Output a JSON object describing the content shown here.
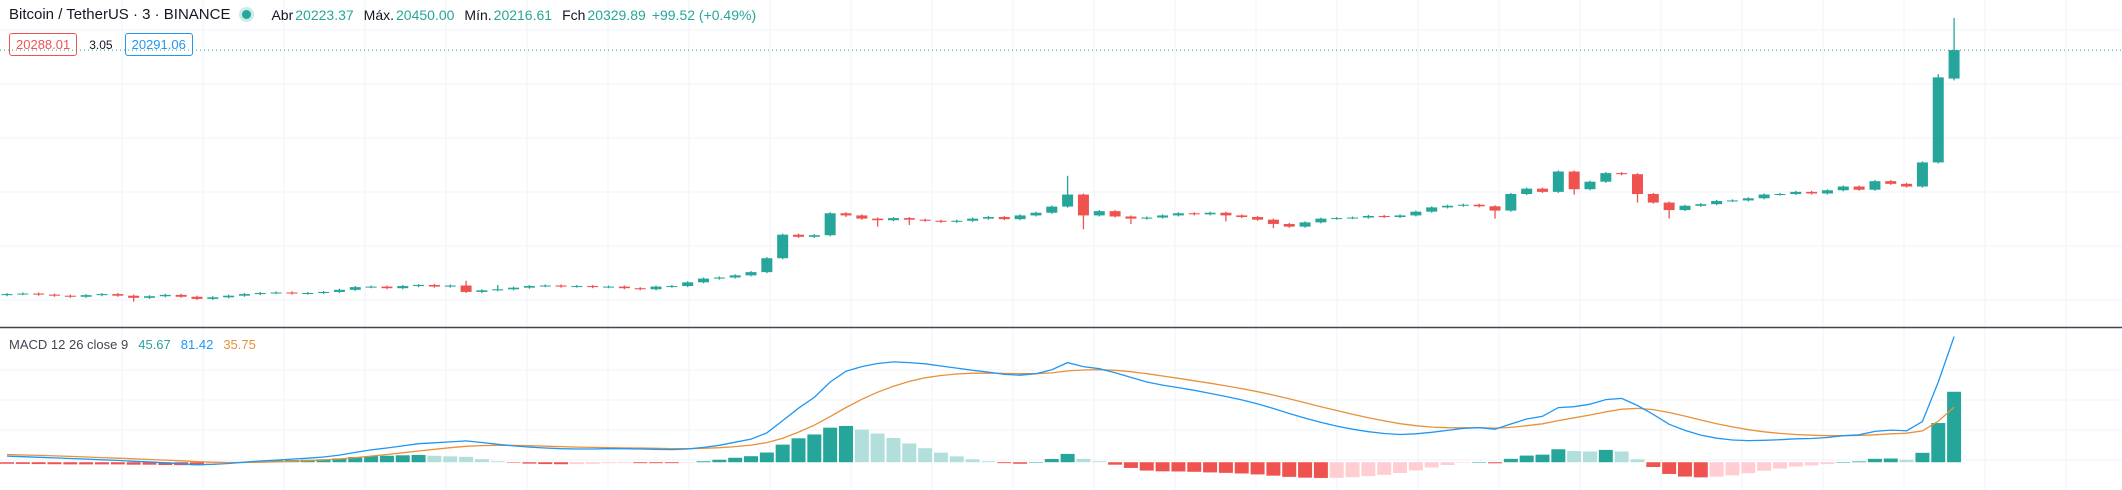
{
  "header": {
    "symbol": "Bitcoin / TetherUS · 3 · BINANCE",
    "open_label": "Abr",
    "high_label": "Máx.",
    "high": "20450.00",
    "low_label": "Mín.",
    "close_label": "Fch",
    "change": "+99.52 (+0.49%)",
    "bid": "20288.01",
    "spread": "3.05",
    "ask": "20291.06"
  },
  "chart_data": [
    {
      "type": "candlestick",
      "up_color": "#26a69a",
      "down_color": "#ef5350",
      "ylim": [
        19295,
        20517
      ],
      "open": [
        19414,
        19418,
        19420,
        19416,
        19412,
        19408,
        19414,
        19418,
        19412,
        19404,
        19410,
        19415,
        19408,
        19400,
        19406,
        19412,
        19418,
        19422,
        19424,
        19420,
        19422,
        19426,
        19434,
        19444,
        19446,
        19440,
        19448,
        19452,
        19446,
        19450,
        19426,
        19432,
        19436,
        19442,
        19448,
        19450,
        19446,
        19448,
        19444,
        19446,
        19440,
        19436,
        19446,
        19448,
        19462,
        19476,
        19480,
        19488,
        19500,
        19552,
        19640,
        19632,
        19638,
        19720,
        19712,
        19700,
        19694,
        19702,
        19696,
        19692,
        19688,
        19692,
        19700,
        19706,
        19698,
        19712,
        19722,
        19745,
        19790,
        19712,
        19728,
        19708,
        19700,
        19704,
        19712,
        19720,
        19716,
        19722,
        19712,
        19706,
        19696,
        19680,
        19670,
        19686,
        19700,
        19702,
        19704,
        19710,
        19706,
        19712,
        19726,
        19742,
        19748,
        19752,
        19746,
        19730,
        19792,
        19812,
        19800,
        19876,
        19810,
        19838,
        19870,
        19866,
        19792,
        19760,
        19732,
        19748,
        19754,
        19766,
        19768,
        19776,
        19790,
        19792,
        19800,
        19794,
        19806,
        19820,
        19808,
        19840,
        19830,
        19820,
        19910,
        20223.37
      ],
      "high": [
        19422,
        19424,
        19424,
        19420,
        19416,
        19418,
        19422,
        19422,
        19416,
        19414,
        19419,
        19419,
        19412,
        19410,
        19416,
        19422,
        19426,
        19428,
        19428,
        19426,
        19430,
        19438,
        19448,
        19450,
        19450,
        19452,
        19456,
        19456,
        19454,
        19468,
        19436,
        19452,
        19446,
        19452,
        19454,
        19454,
        19452,
        19452,
        19450,
        19450,
        19444,
        19450,
        19452,
        19466,
        19480,
        19484,
        19492,
        19504,
        19556,
        19644,
        19644,
        19642,
        19724,
        19724,
        19716,
        19704,
        19706,
        19706,
        19700,
        19696,
        19696,
        19704,
        19710,
        19710,
        19716,
        19726,
        19749,
        19860,
        19794,
        19732,
        19732,
        19712,
        19708,
        19716,
        19724,
        19724,
        19726,
        19726,
        19716,
        19710,
        19700,
        19684,
        19690,
        19704,
        19706,
        19708,
        19714,
        19714,
        19716,
        19730,
        19746,
        19752,
        19756,
        19756,
        19750,
        19796,
        19816,
        19816,
        19880,
        19880,
        19842,
        19874,
        19874,
        19870,
        19796,
        19764,
        19752,
        19758,
        19770,
        19772,
        19780,
        19794,
        19796,
        19804,
        19804,
        19810,
        19824,
        19824,
        19844,
        19844,
        19834,
        19914,
        20240,
        20450
      ],
      "low": [
        19410,
        19414,
        19412,
        19408,
        19404,
        19404,
        19410,
        19408,
        19390,
        19400,
        19406,
        19404,
        19396,
        19396,
        19402,
        19408,
        19414,
        19418,
        19416,
        19416,
        19418,
        19422,
        19430,
        19440,
        19436,
        19436,
        19444,
        19442,
        19442,
        19422,
        19422,
        19428,
        19432,
        19438,
        19444,
        19442,
        19442,
        19440,
        19440,
        19436,
        19432,
        19432,
        19442,
        19444,
        19458,
        19472,
        19476,
        19484,
        19496,
        19548,
        19628,
        19628,
        19634,
        19706,
        19696,
        19670,
        19690,
        19676,
        19688,
        19684,
        19684,
        19688,
        19696,
        19694,
        19694,
        19708,
        19718,
        19741,
        19660,
        19708,
        19704,
        19680,
        19696,
        19700,
        19708,
        19712,
        19712,
        19690,
        19702,
        19692,
        19664,
        19666,
        19666,
        19682,
        19696,
        19698,
        19700,
        19702,
        19702,
        19708,
        19722,
        19738,
        19744,
        19742,
        19700,
        19726,
        19788,
        19796,
        19796,
        19790,
        19806,
        19834,
        19862,
        19760,
        19756,
        19700,
        19728,
        19744,
        19750,
        19762,
        19764,
        19772,
        19786,
        19788,
        19790,
        19790,
        19802,
        19804,
        19804,
        19826,
        19816,
        19816,
        19906,
        20216.61
      ],
      "close": [
        19418,
        19420,
        19416,
        19412,
        19408,
        19414,
        19418,
        19412,
        19404,
        19410,
        19415,
        19408,
        19400,
        19406,
        19412,
        19418,
        19422,
        19424,
        19420,
        19422,
        19426,
        19434,
        19444,
        19446,
        19440,
        19448,
        19452,
        19446,
        19450,
        19426,
        19432,
        19436,
        19442,
        19448,
        19450,
        19446,
        19448,
        19444,
        19446,
        19440,
        19436,
        19446,
        19448,
        19462,
        19476,
        19480,
        19488,
        19500,
        19552,
        19640,
        19632,
        19638,
        19720,
        19712,
        19700,
        19694,
        19702,
        19696,
        19692,
        19688,
        19692,
        19700,
        19706,
        19698,
        19712,
        19722,
        19745,
        19790,
        19712,
        19728,
        19708,
        19700,
        19704,
        19712,
        19720,
        19716,
        19722,
        19712,
        19706,
        19696,
        19680,
        19670,
        19686,
        19700,
        19702,
        19704,
        19710,
        19706,
        19712,
        19726,
        19742,
        19748,
        19752,
        19746,
        19730,
        19792,
        19812,
        19800,
        19876,
        19810,
        19838,
        19870,
        19866,
        19792,
        19760,
        19732,
        19748,
        19754,
        19766,
        19768,
        19776,
        19790,
        19792,
        19800,
        19794,
        19806,
        19820,
        19808,
        19840,
        19830,
        19820,
        19910,
        20228,
        20329.89
      ]
    },
    {
      "type": "macd",
      "title": "MACD 12 26 close 9",
      "ylim": [
        -18,
        87
      ],
      "macd_color": "#2196f3",
      "signal_color": "#e8913a",
      "histogram_colors": {
        "up_rising": "#26a69a",
        "up_falling": "#b2dfdb",
        "down_falling": "#ef5350",
        "down_rising": "#ffcdd2"
      },
      "histogram": [
        -1.0,
        -1.1,
        -1.2,
        -1.3,
        -1.4,
        -1.4,
        -1.4,
        -1.4,
        -1.6,
        -1.6,
        -1.8,
        -1.9,
        -2.0,
        -1.4,
        -0.6,
        0.2,
        0.8,
        1.1,
        1.4,
        1.6,
        1.9,
        2.5,
        3.4,
        4.0,
        4.2,
        4.5,
        4.7,
        4.2,
        3.8,
        3.5,
        2.0,
        0.6,
        -0.3,
        -0.9,
        -1.2,
        -1.3,
        -1.2,
        -1.0,
        -0.6,
        -0.5,
        -0.6,
        -0.6,
        -0.6,
        -0.2,
        0.6,
        1.6,
        2.9,
        3.9,
        6.3,
        11.4,
        15.5,
        18.0,
        22.4,
        23.5,
        21.2,
        18.6,
        15.7,
        12.2,
        9.1,
        6.2,
        3.8,
        1.9,
        0.6,
        -0.6,
        -1.0,
        0.0,
        2.1,
        5.4,
        2.2,
        0.6,
        -1.6,
        -3.7,
        -5.4,
        -5.9,
        -6.0,
        -6.2,
        -6.6,
        -6.9,
        -7.3,
        -7.9,
        -8.7,
        -9.5,
        -10.0,
        -10.2,
        -10.1,
        -9.7,
        -9.0,
        -8.2,
        -7.0,
        -5.3,
        -3.4,
        -1.8,
        -0.3,
        0.1,
        -0.7,
        2.2,
        4.3,
        4.9,
        8.4,
        7.2,
        7.0,
        8.0,
        7.0,
        1.9,
        -3.1,
        -7.6,
        -9.3,
        -9.8,
        -9.4,
        -8.5,
        -7.1,
        -5.5,
        -4.1,
        -2.8,
        -2.1,
        -1.2,
        0.0,
        0.5,
        2.2,
        2.4,
        1.6,
        6.1,
        25.4,
        45.67
      ],
      "macd": [
        4,
        3.6,
        3.2,
        2.8,
        2.4,
        2,
        1.6,
        1.2,
        0.6,
        0.2,
        -0.4,
        -1,
        -1.6,
        -1.4,
        -0.8,
        0,
        0.8,
        1.4,
        2,
        2.6,
        3.4,
        4.6,
        6.4,
        8,
        9.2,
        10.6,
        12,
        12.6,
        13.2,
        13.8,
        12.8,
        11.6,
        10.6,
        9.8,
        9.2,
        8.8,
        8.6,
        8.6,
        8.8,
        8.8,
        8.6,
        8.4,
        8.2,
        8.6,
        9.6,
        11,
        13,
        15,
        19,
        27,
        35,
        42,
        52,
        59,
        62,
        64,
        65,
        64.6,
        63.8,
        62.4,
        61,
        59.6,
        58.4,
        57,
        56.4,
        57.4,
        60,
        64.6,
        62,
        60.6,
        58,
        55,
        52,
        50,
        48.4,
        46.6,
        44.6,
        42.6,
        40.4,
        37.8,
        34.8,
        31.6,
        28.6,
        25.8,
        23.4,
        21.4,
        19.8,
        18.6,
        18,
        18.4,
        19.4,
        20.6,
        22,
        22.4,
        21.4,
        24.8,
        28,
        29.8,
        35.4,
        36,
        37.6,
        40.6,
        41.4,
        36.8,
        31,
        24.6,
        20.6,
        17.6,
        15.6,
        14.4,
        14,
        14.2,
        14.6,
        15.2,
        15.4,
        16,
        17.2,
        17.8,
        20,
        20.8,
        20.4,
        26.4,
        52,
        81.42
      ],
      "signal": [
        5.0,
        4.7,
        4.4,
        4.1,
        3.8,
        3.4,
        3.0,
        2.6,
        2.2,
        1.8,
        1.4,
        0.9,
        0.4,
        0.0,
        -0.2,
        -0.2,
        0.0,
        0.3,
        0.6,
        1.0,
        1.5,
        2.1,
        3.0,
        4.0,
        5.0,
        6.1,
        7.3,
        8.4,
        9.4,
        10.3,
        10.8,
        11.0,
        10.9,
        10.7,
        10.4,
        10.1,
        9.8,
        9.6,
        9.4,
        9.3,
        9.2,
        9.0,
        8.8,
        8.8,
        9.0,
        9.4,
        10.1,
        11.1,
        12.7,
        15.6,
        19.5,
        24.0,
        29.6,
        35.5,
        40.8,
        45.4,
        49.3,
        52.4,
        54.7,
        56.2,
        57.2,
        57.7,
        57.8,
        57.6,
        57.4,
        57.4,
        57.9,
        59.2,
        59.8,
        60.0,
        59.6,
        58.7,
        57.4,
        55.9,
        54.4,
        52.8,
        51.2,
        49.5,
        47.7,
        45.7,
        43.5,
        41.1,
        38.6,
        36.0,
        33.5,
        31.1,
        28.8,
        26.8,
        25.0,
        23.7,
        22.8,
        22.4,
        22.3,
        22.3,
        22.1,
        22.6,
        23.7,
        24.9,
        27.0,
        28.8,
        30.6,
        32.6,
        34.4,
        34.9,
        34.1,
        32.2,
        29.9,
        27.4,
        25.0,
        22.9,
        21.1,
        19.7,
        18.7,
        18.0,
        17.5,
        17.2,
        17.2,
        17.3,
        17.8,
        18.4,
        18.8,
        20.3,
        26.6,
        35.75
      ]
    }
  ]
}
